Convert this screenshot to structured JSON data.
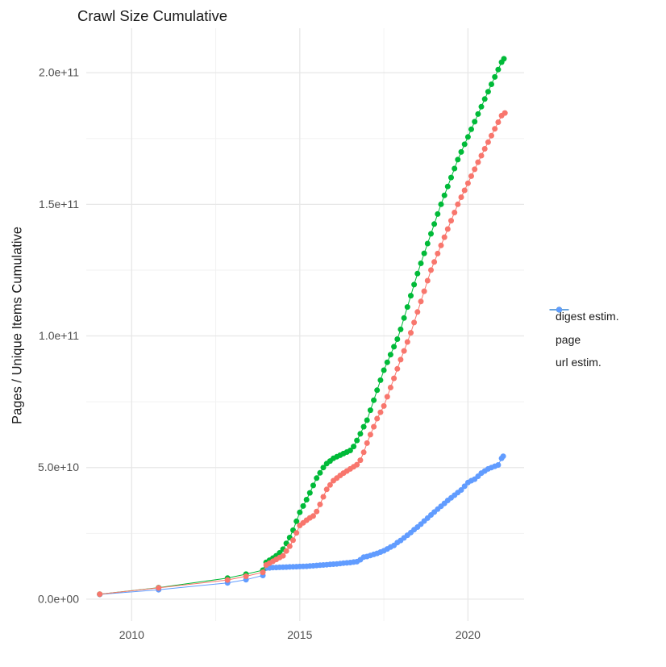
{
  "title": "Crawl Size Cumulative",
  "chart_data": {
    "type": "line",
    "title": "Crawl Size Cumulative",
    "xlabel": "",
    "ylabel": "Pages / Unique Items Cumulative",
    "x_domain": [
      2008.65,
      2021.67
    ],
    "y_domain": [
      -8.3,
      216.9
    ],
    "y_unit": "1e9 pages (values below are billions)",
    "grid": true,
    "legend_position": "right",
    "x_ticks": [
      {
        "v": 2010,
        "label": "2010"
      },
      {
        "v": 2015,
        "label": "2015"
      },
      {
        "v": 2020,
        "label": "2020"
      }
    ],
    "y_ticks": [
      {
        "v": 0,
        "label": "0.0e+00"
      },
      {
        "v": 50,
        "label": "5.0e+10"
      },
      {
        "v": 100,
        "label": "1.0e+11"
      },
      {
        "v": 150,
        "label": "1.5e+11"
      },
      {
        "v": 200,
        "label": "2.0e+11"
      }
    ],
    "x_minor": [
      2012.5,
      2017.5
    ],
    "y_minor": [
      25,
      75,
      125,
      175
    ],
    "series": [
      {
        "name": "digest estim.",
        "color": "#F8766D",
        "points": [
          [
            2009.05,
            1.9
          ],
          [
            2010.8,
            4.3
          ],
          [
            2012.85,
            7.3
          ],
          [
            2013.4,
            8.7
          ],
          [
            2013.9,
            10.2
          ],
          [
            2014,
            13
          ],
          [
            2014.1,
            13.7
          ],
          [
            2014.2,
            14.4
          ],
          [
            2014.3,
            15.1
          ],
          [
            2014.4,
            15.8
          ],
          [
            2014.5,
            16.5
          ],
          [
            2014.6,
            18.3
          ],
          [
            2014.7,
            20.1
          ],
          [
            2014.8,
            22.4
          ],
          [
            2014.9,
            25.2
          ],
          [
            2015,
            28
          ],
          [
            2015.1,
            29
          ],
          [
            2015.2,
            30
          ],
          [
            2015.3,
            30.9
          ],
          [
            2015.4,
            31.6
          ],
          [
            2015.5,
            33.3
          ],
          [
            2015.6,
            36
          ],
          [
            2015.7,
            38.9
          ],
          [
            2015.8,
            41.7
          ],
          [
            2015.9,
            43.4
          ],
          [
            2016,
            45
          ],
          [
            2016.1,
            46
          ],
          [
            2016.2,
            47
          ],
          [
            2016.3,
            47.9
          ],
          [
            2016.4,
            48.7
          ],
          [
            2016.5,
            49.5
          ],
          [
            2016.6,
            50.3
          ],
          [
            2016.7,
            51.1
          ],
          [
            2016.8,
            52.8
          ],
          [
            2016.9,
            55.8
          ],
          [
            2017,
            59.3
          ],
          [
            2017.1,
            62.5
          ],
          [
            2017.2,
            65.5
          ],
          [
            2017.3,
            68.6
          ],
          [
            2017.4,
            71
          ],
          [
            2017.5,
            73.4
          ],
          [
            2017.6,
            76.9
          ],
          [
            2017.7,
            80.4
          ],
          [
            2017.8,
            83.9
          ],
          [
            2017.9,
            87.5
          ],
          [
            2018,
            91
          ],
          [
            2018.1,
            94.3
          ],
          [
            2018.2,
            97.7
          ],
          [
            2018.3,
            101.2
          ],
          [
            2018.4,
            105.1
          ],
          [
            2018.5,
            109.1
          ],
          [
            2018.6,
            113.1
          ],
          [
            2018.7,
            117
          ],
          [
            2018.8,
            121
          ],
          [
            2018.9,
            125
          ],
          [
            2019,
            128.1
          ],
          [
            2019.1,
            131.3
          ],
          [
            2019.2,
            134.4
          ],
          [
            2019.3,
            137.5
          ],
          [
            2019.4,
            140.6
          ],
          [
            2019.5,
            143.8
          ],
          [
            2019.6,
            146.9
          ],
          [
            2019.7,
            150
          ],
          [
            2019.8,
            152.7
          ],
          [
            2019.9,
            155.3
          ],
          [
            2020,
            158
          ],
          [
            2020.1,
            160.7
          ],
          [
            2020.2,
            163.3
          ],
          [
            2020.3,
            166
          ],
          [
            2020.4,
            168.5
          ],
          [
            2020.5,
            171.1
          ],
          [
            2020.6,
            173.6
          ],
          [
            2020.7,
            176.1
          ],
          [
            2020.8,
            178.7
          ],
          [
            2020.9,
            181.2
          ],
          [
            2021,
            183.7
          ],
          [
            2021.1,
            184.7
          ]
        ]
      },
      {
        "name": "page",
        "color": "#00BA38",
        "points": [
          [
            2009.05,
            1.9
          ],
          [
            2010.8,
            4.4
          ],
          [
            2012.85,
            8
          ],
          [
            2013.4,
            9.5
          ],
          [
            2013.9,
            11
          ],
          [
            2014,
            14
          ],
          [
            2014.1,
            14.8
          ],
          [
            2014.2,
            15.6
          ],
          [
            2014.3,
            16.5
          ],
          [
            2014.4,
            17.6
          ],
          [
            2014.5,
            19
          ],
          [
            2014.6,
            21.2
          ],
          [
            2014.7,
            23.4
          ],
          [
            2014.8,
            26.2
          ],
          [
            2014.9,
            29.6
          ],
          [
            2015,
            33
          ],
          [
            2015.1,
            35.4
          ],
          [
            2015.2,
            37.8
          ],
          [
            2015.3,
            40.4
          ],
          [
            2015.4,
            43.2
          ],
          [
            2015.5,
            46
          ],
          [
            2015.6,
            48
          ],
          [
            2015.7,
            50
          ],
          [
            2015.8,
            51.5
          ],
          [
            2015.9,
            52.5
          ],
          [
            2016,
            53.5
          ],
          [
            2016.1,
            54.1
          ],
          [
            2016.2,
            54.7
          ],
          [
            2016.3,
            55.3
          ],
          [
            2016.4,
            55.9
          ],
          [
            2016.5,
            56.5
          ],
          [
            2016.6,
            58
          ],
          [
            2016.7,
            60.3
          ],
          [
            2016.8,
            62.8
          ],
          [
            2016.9,
            65.5
          ],
          [
            2017,
            68
          ],
          [
            2017.1,
            71.8
          ],
          [
            2017.2,
            75.6
          ],
          [
            2017.3,
            79.4
          ],
          [
            2017.4,
            83.2
          ],
          [
            2017.5,
            87
          ],
          [
            2017.6,
            90
          ],
          [
            2017.7,
            92.9
          ],
          [
            2017.8,
            95.9
          ],
          [
            2017.9,
            98.8
          ],
          [
            2018,
            102.5
          ],
          [
            2018.1,
            106.8
          ],
          [
            2018.2,
            111
          ],
          [
            2018.3,
            115.3
          ],
          [
            2018.4,
            119.5
          ],
          [
            2018.5,
            123.7
          ],
          [
            2018.6,
            127.6
          ],
          [
            2018.7,
            131.4
          ],
          [
            2018.8,
            135.1
          ],
          [
            2018.9,
            138.8
          ],
          [
            2019,
            142.5
          ],
          [
            2019.1,
            146.3
          ],
          [
            2019.2,
            150
          ],
          [
            2019.3,
            153.4
          ],
          [
            2019.4,
            156.8
          ],
          [
            2019.5,
            160.2
          ],
          [
            2019.6,
            163.6
          ],
          [
            2019.7,
            167
          ],
          [
            2019.8,
            169.9
          ],
          [
            2019.9,
            172.8
          ],
          [
            2020,
            175.6
          ],
          [
            2020.1,
            178.5
          ],
          [
            2020.2,
            181.4
          ],
          [
            2020.3,
            184.3
          ],
          [
            2020.4,
            187.1
          ],
          [
            2020.5,
            190
          ],
          [
            2020.6,
            192.8
          ],
          [
            2020.7,
            195.6
          ],
          [
            2020.8,
            198.4
          ],
          [
            2020.9,
            201.2
          ],
          [
            2021,
            204
          ],
          [
            2021.07,
            205.3
          ]
        ]
      },
      {
        "name": "url estim.",
        "color": "#619CFF",
        "points": [
          [
            2009.05,
            1.8
          ],
          [
            2010.8,
            3.6
          ],
          [
            2012.85,
            6.2
          ],
          [
            2013.4,
            7.4
          ],
          [
            2013.9,
            9
          ],
          [
            2014,
            11.8
          ],
          [
            2014.1,
            11.9
          ],
          [
            2014.2,
            12
          ],
          [
            2014.3,
            12.05
          ],
          [
            2014.4,
            12.1
          ],
          [
            2014.5,
            12.15
          ],
          [
            2014.6,
            12.2
          ],
          [
            2014.7,
            12.25
          ],
          [
            2014.8,
            12.3
          ],
          [
            2014.9,
            12.35
          ],
          [
            2015,
            12.4
          ],
          [
            2015.1,
            12.45
          ],
          [
            2015.2,
            12.5
          ],
          [
            2015.3,
            12.6
          ],
          [
            2015.4,
            12.7
          ],
          [
            2015.5,
            12.8
          ],
          [
            2015.6,
            12.9
          ],
          [
            2015.7,
            13
          ],
          [
            2015.8,
            13.1
          ],
          [
            2015.9,
            13.2
          ],
          [
            2016,
            13.3
          ],
          [
            2016.1,
            13.4
          ],
          [
            2016.2,
            13.55
          ],
          [
            2016.3,
            13.7
          ],
          [
            2016.4,
            13.8
          ],
          [
            2016.5,
            13.9
          ],
          [
            2016.6,
            14.1
          ],
          [
            2016.7,
            14.25
          ],
          [
            2016.8,
            15
          ],
          [
            2016.9,
            16
          ],
          [
            2017,
            16.2
          ],
          [
            2017.1,
            16.6
          ],
          [
            2017.2,
            17
          ],
          [
            2017.3,
            17.4
          ],
          [
            2017.4,
            17.9
          ],
          [
            2017.5,
            18.4
          ],
          [
            2017.6,
            19.1
          ],
          [
            2017.7,
            19.8
          ],
          [
            2017.8,
            20.4
          ],
          [
            2017.9,
            21.5
          ],
          [
            2018,
            22.3
          ],
          [
            2018.1,
            23.3
          ],
          [
            2018.2,
            24.3
          ],
          [
            2018.3,
            25.3
          ],
          [
            2018.4,
            26.4
          ],
          [
            2018.5,
            27.4
          ],
          [
            2018.6,
            28.5
          ],
          [
            2018.7,
            29.7
          ],
          [
            2018.8,
            30.8
          ],
          [
            2018.9,
            32
          ],
          [
            2019,
            33.1
          ],
          [
            2019.1,
            34.2
          ],
          [
            2019.2,
            35.3
          ],
          [
            2019.3,
            36.4
          ],
          [
            2019.4,
            37.5
          ],
          [
            2019.5,
            38.5
          ],
          [
            2019.6,
            39.5
          ],
          [
            2019.7,
            40.5
          ],
          [
            2019.8,
            41.5
          ],
          [
            2019.9,
            42.9
          ],
          [
            2020,
            44.3
          ],
          [
            2020.1,
            45
          ],
          [
            2020.2,
            45.6
          ],
          [
            2020.3,
            46.7
          ],
          [
            2020.4,
            47.9
          ],
          [
            2020.5,
            48.7
          ],
          [
            2020.6,
            49.5
          ],
          [
            2020.7,
            50
          ],
          [
            2020.8,
            50.5
          ],
          [
            2020.9,
            51
          ],
          [
            2021,
            53.5
          ],
          [
            2021.05,
            54.3
          ]
        ]
      }
    ]
  },
  "style": {
    "grid_major_color": "#e7e7e7",
    "grid_minor_color": "#f2f2f2",
    "tick_label_color": "#4d4d4d",
    "text_color": "#1a1a1a",
    "background": "#ffffff"
  }
}
